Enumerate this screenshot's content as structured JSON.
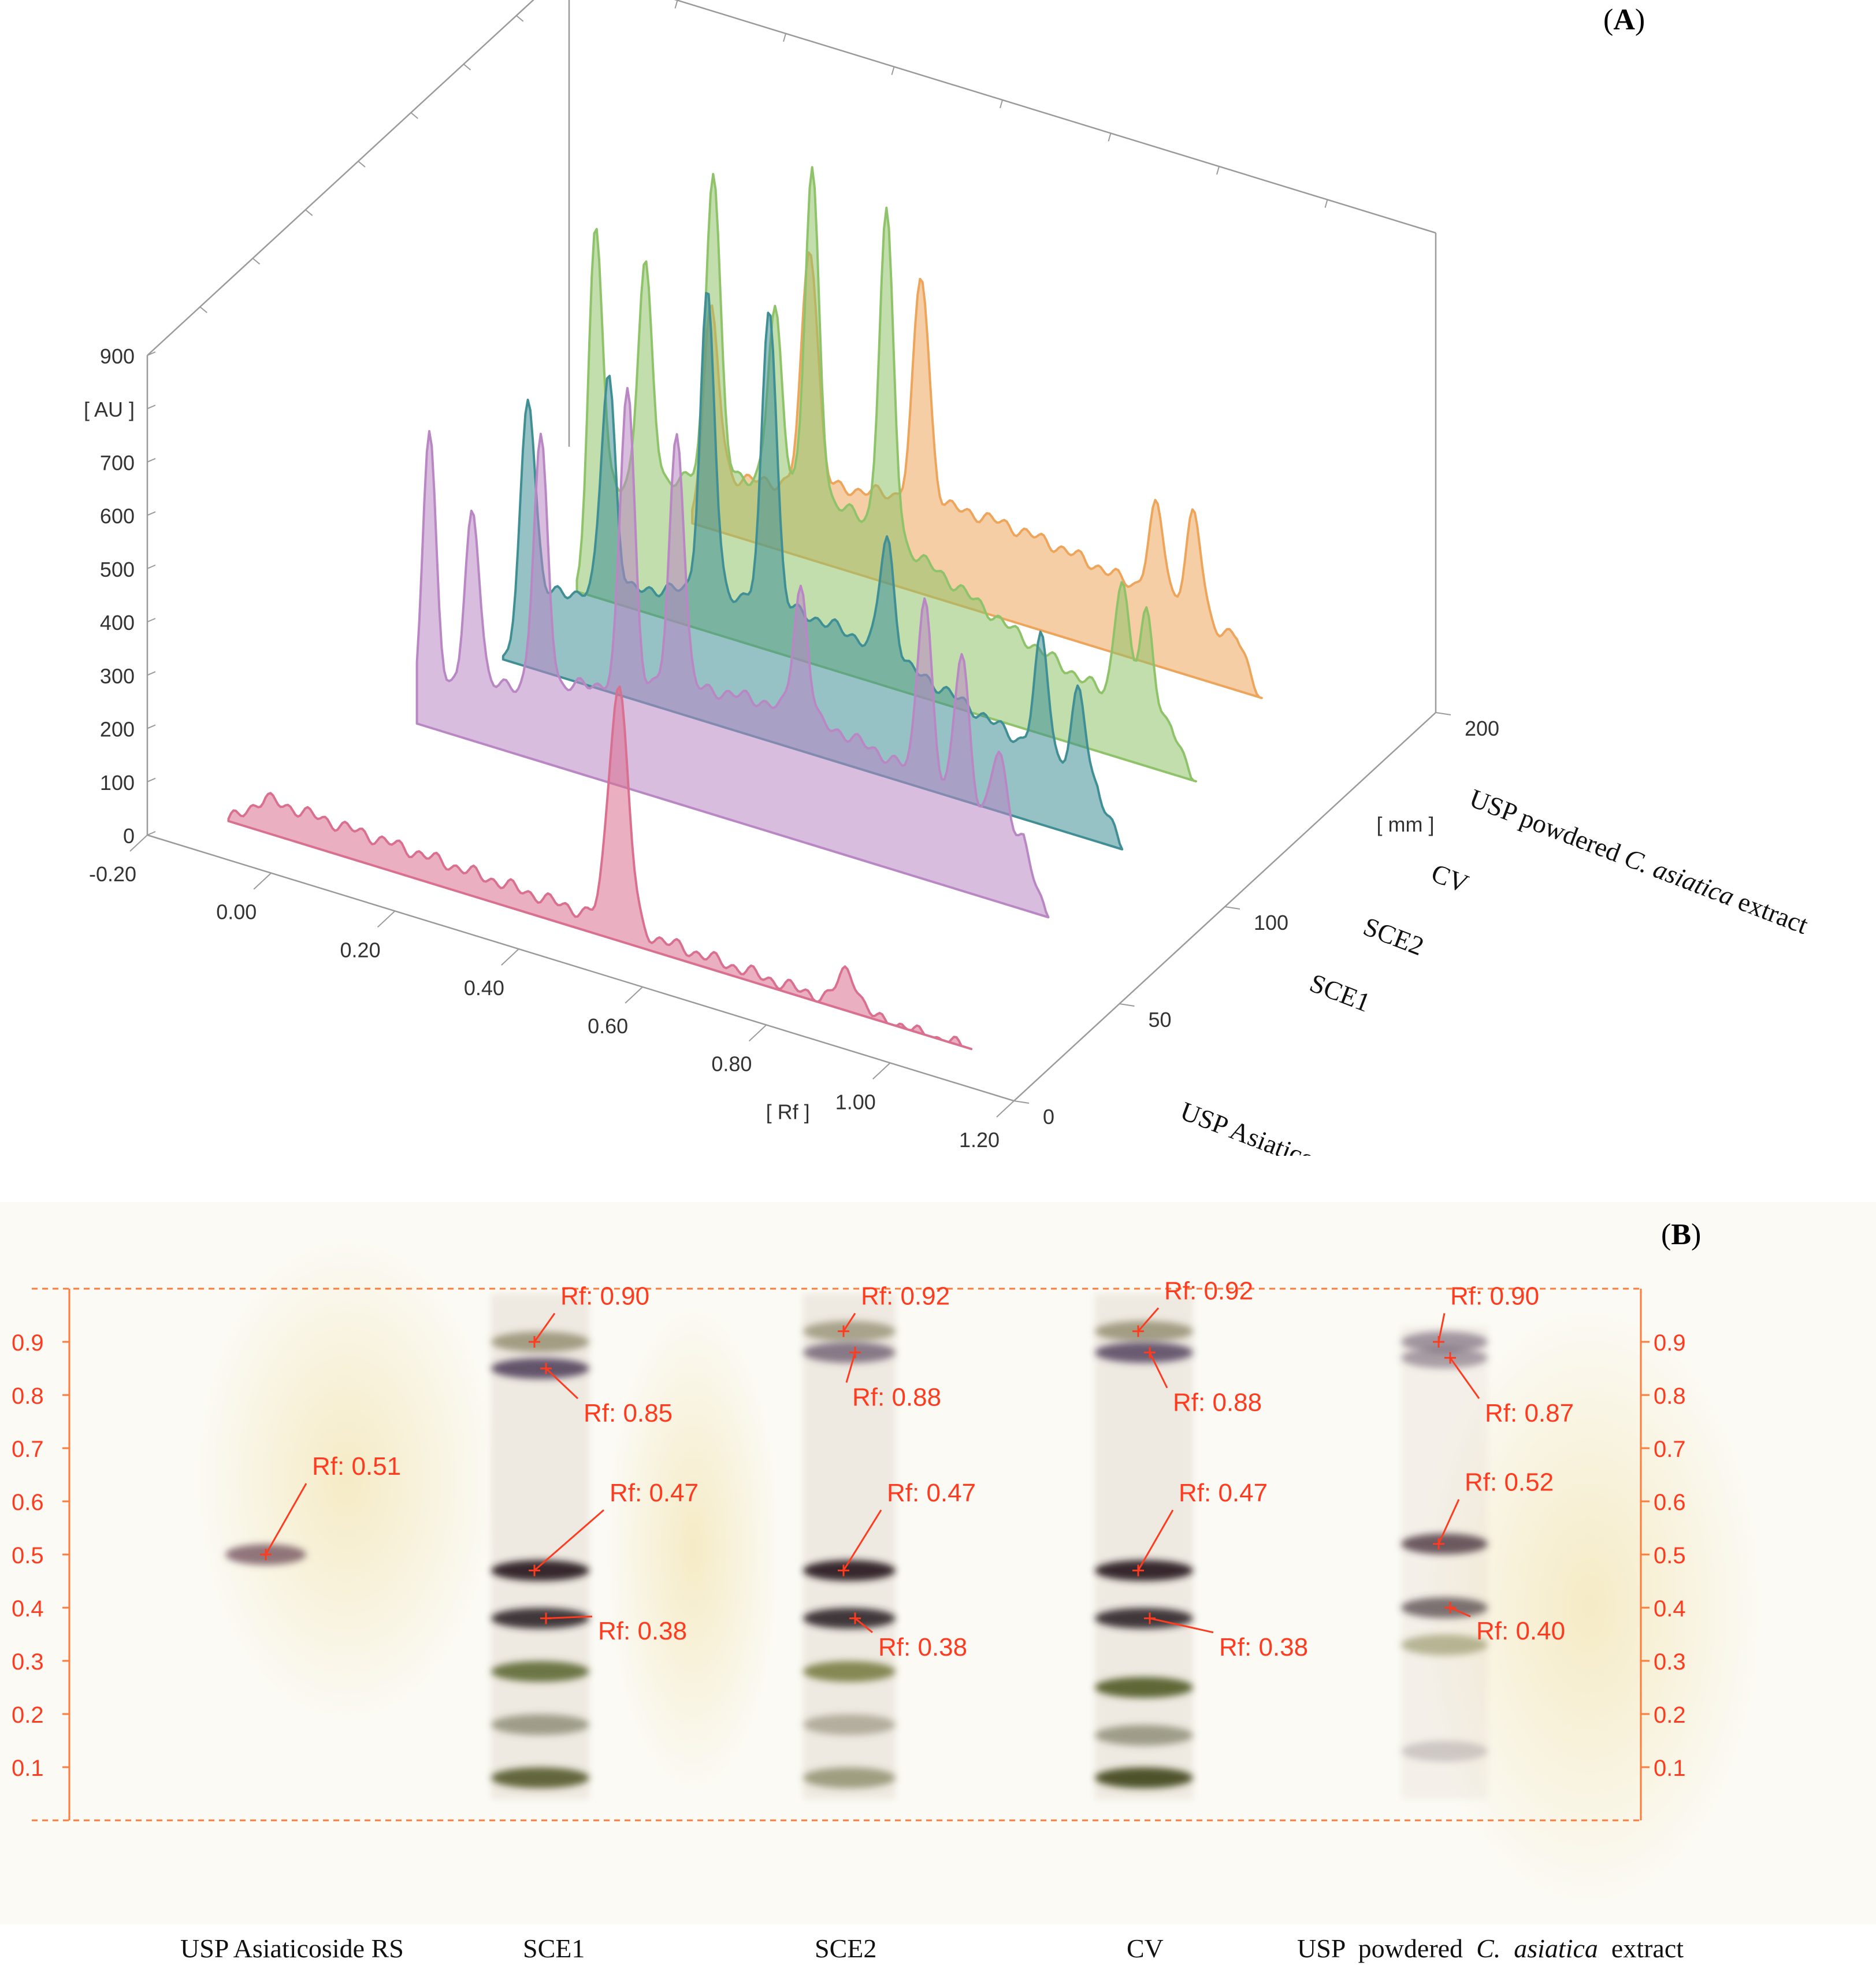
{
  "chart_data": [
    {
      "type": "area",
      "panel_label": "A",
      "title": "",
      "zlabel": "[ AU ]",
      "xlabel": "[ Rf ]",
      "ylabel": "[ mm ]",
      "z_ticks": [
        "0",
        "100",
        "200",
        "300",
        "400",
        "500",
        "600",
        "700",
        "800",
        "900"
      ],
      "z_lim": [
        0,
        900
      ],
      "x_ticks": [
        "-0.20",
        "0.00",
        "0.20",
        "0.40",
        "0.60",
        "0.80",
        "1.00",
        "1.20"
      ],
      "x_lim": [
        -0.2,
        1.2
      ],
      "y_ticks": [
        "0",
        "50",
        "100",
        "200"
      ],
      "y_lim": [
        0,
        200
      ],
      "series": [
        {
          "name": "USP Asiaticoside RS",
          "color": "#d9708f",
          "peaks": [
            {
              "rf": 0.51,
              "au": 450
            },
            {
              "rf": 0.88,
              "au": 70
            }
          ]
        },
        {
          "name": "SCE1",
          "color": "#b987c4",
          "peaks": [
            {
              "rf": 0.0,
              "au": 520
            },
            {
              "rf": 0.07,
              "au": 330
            },
            {
              "rf": 0.18,
              "au": 460
            },
            {
              "rf": 0.32,
              "au": 560
            },
            {
              "rf": 0.4,
              "au": 480
            },
            {
              "rf": 0.6,
              "au": 240
            },
            {
              "rf": 0.8,
              "au": 350
            },
            {
              "rf": 0.86,
              "au": 290
            },
            {
              "rf": 0.92,
              "au": 150
            }
          ]
        },
        {
          "name": "SCE2",
          "color": "#3f8f95",
          "peaks": [
            {
              "rf": 0.04,
              "au": 420
            },
            {
              "rf": 0.17,
              "au": 410
            },
            {
              "rf": 0.33,
              "au": 560
            },
            {
              "rf": 0.43,
              "au": 560
            },
            {
              "rf": 0.62,
              "au": 220
            },
            {
              "rf": 0.87,
              "au": 220
            },
            {
              "rf": 0.93,
              "au": 160
            }
          ]
        },
        {
          "name": "CV",
          "color": "#8fc36a",
          "peaks": [
            {
              "rf": 0.03,
              "au": 600
            },
            {
              "rf": 0.11,
              "au": 410
            },
            {
              "rf": 0.22,
              "au": 580
            },
            {
              "rf": 0.32,
              "au": 320
            },
            {
              "rf": 0.38,
              "au": 600
            },
            {
              "rf": 0.5,
              "au": 600
            },
            {
              "rf": 0.88,
              "au": 230
            },
            {
              "rf": 0.92,
              "au": 200
            }
          ]
        },
        {
          "name": "USP powdered C. asiatica extract",
          "color": "#eda55c",
          "peaks": [
            {
              "rf": 0.08,
              "au": 360
            },
            {
              "rf": 0.24,
              "au": 450
            },
            {
              "rf": 0.42,
              "au": 420
            },
            {
              "rf": 0.8,
              "au": 170
            },
            {
              "rf": 0.86,
              "au": 190
            }
          ]
        }
      ]
    },
    {
      "type": "table",
      "panel_label": "B",
      "y_ticks": [
        "0.9",
        "0.8",
        "0.7",
        "0.6",
        "0.5",
        "0.4",
        "0.3",
        "0.2",
        "0.1"
      ],
      "lanes": [
        {
          "name": "USP Asiaticoside RS",
          "annotations": [
            "Rf: 0.51"
          ]
        },
        {
          "name": "SCE1",
          "annotations": [
            "Rf: 0.90",
            "Rf: 0.85",
            "Rf: 0.47",
            "Rf: 0.38"
          ]
        },
        {
          "name": "SCE2",
          "annotations": [
            "Rf: 0.92",
            "Rf: 0.88",
            "Rf: 0.47",
            "Rf: 0.38"
          ]
        },
        {
          "name": "CV",
          "annotations": [
            "Rf: 0.92",
            "Rf: 0.88",
            "Rf: 0.47",
            "Rf: 0.38"
          ]
        },
        {
          "name": "USP powdered C. asiatica extract",
          "annotations": [
            "Rf: 0.90",
            "Rf: 0.87",
            "Rf: 0.52",
            "Rf: 0.40"
          ]
        }
      ]
    }
  ],
  "labels": {
    "panel_a_open": "(",
    "panel_a": "A",
    "panel_a_close": ")",
    "panel_b_open": "(",
    "panel_b": "B",
    "panel_b_close": ")",
    "lane_1": "USP Asiaticoside RS",
    "lane_2": "SCE1",
    "lane_3": "SCE2",
    "lane_4": "CV",
    "lane_5_pre": "USP  powdered  ",
    "lane_5_em": "C.  asiatica",
    "lane_5_post": "  extract",
    "series_5_pre": "USP  powdered  ",
    "series_5_em": "C.  asiatica",
    "series_5_post": "  extract"
  },
  "colors": {
    "axis_red": "#ff3b1f",
    "axis_orange": "#ff7b3a",
    "grid_gray": "#9a9a9a"
  }
}
